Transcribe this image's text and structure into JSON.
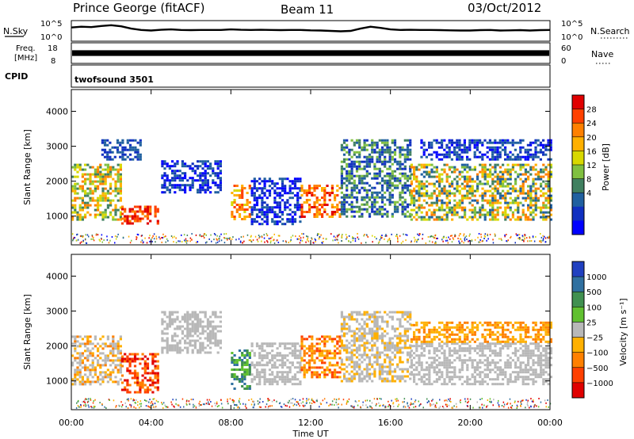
{
  "header": {
    "station": "Prince George (fitACF)",
    "beam": "Beam 11",
    "date": "03/Oct/2012"
  },
  "left_labels": {
    "nsky": "N.Sky",
    "freq_1": "Freq.",
    "freq_2": "[MHz]",
    "cpid": "CPID"
  },
  "right_labels": {
    "nsearch": "N.Search",
    "nave": "Nave"
  },
  "cpid_value": "twofsound 3501",
  "chart_data": [
    {
      "type": "line",
      "name": "noise-panel",
      "ylabel_left": "N.Sky",
      "ylabel_right": "N.Search",
      "left_ticks": [
        "10^5",
        "10^0"
      ],
      "right_ticks": [
        "10^5",
        "10^0"
      ],
      "xlim": [
        0,
        24
      ],
      "series": [
        {
          "x": [
            0,
            0.5,
            1,
            1.5,
            2,
            2.5,
            3,
            3.5,
            4,
            4.5,
            5,
            5.5,
            6,
            6.5,
            7,
            7.5,
            8,
            8.5,
            9,
            9.5,
            10,
            10.5,
            11,
            11.5,
            12,
            12.5,
            13,
            13.5,
            14,
            14.5,
            15,
            15.5,
            16,
            16.5,
            17,
            17.5,
            18,
            18.5,
            19,
            19.5,
            20,
            20.5,
            21,
            21.5,
            22,
            22.5,
            23,
            23.5,
            24
          ],
          "y": [
            0.68,
            0.72,
            0.7,
            0.76,
            0.8,
            0.74,
            0.62,
            0.55,
            0.52,
            0.56,
            0.58,
            0.55,
            0.54,
            0.55,
            0.55,
            0.55,
            0.58,
            0.56,
            0.55,
            0.56,
            0.55,
            0.54,
            0.55,
            0.55,
            0.53,
            0.52,
            0.5,
            0.48,
            0.5,
            0.62,
            0.72,
            0.66,
            0.58,
            0.55,
            0.56,
            0.55,
            0.55,
            0.54,
            0.53,
            0.52,
            0.52,
            0.54,
            0.55,
            0.52,
            0.53,
            0.54,
            0.52,
            0.54,
            0.55
          ]
        }
      ]
    },
    {
      "type": "bar",
      "name": "frequency-panel",
      "ylabel_left": "Freq. [MHz]",
      "ylabel_right": "Nave",
      "left_ticks": [
        "18",
        "8"
      ],
      "right_ticks": [
        "60",
        "0"
      ],
      "xlim": [
        0,
        24
      ],
      "band_value_range": [
        0.35,
        0.65
      ]
    },
    {
      "type": "heatmap",
      "name": "power-panel",
      "ylabel": "Slant Range [km]",
      "xlabel": "",
      "ylim": [
        200,
        4600
      ],
      "xlim": [
        0,
        24
      ],
      "y_ticks": [
        "1000",
        "2000",
        "3000",
        "4000"
      ],
      "colorbar": {
        "label": "Power [dB]",
        "ticks": [
          "28",
          "24",
          "20",
          "16",
          "12",
          "8",
          "4"
        ],
        "colors": [
          "#e00000",
          "#ff4000",
          "#ff8000",
          "#ffb000",
          "#d8d800",
          "#80c040",
          "#408060",
          "#2060a0",
          "#1030c0",
          "#0000ff"
        ]
      },
      "regions": [
        {
          "t0": 0.0,
          "t1": 2.5,
          "r0": 900,
          "r1": 2500,
          "c": [
            2,
            3,
            4,
            5,
            6
          ]
        },
        {
          "t0": 2.5,
          "t1": 4.3,
          "r0": 800,
          "r1": 1300,
          "c": [
            0,
            1,
            2
          ]
        },
        {
          "t0": 1.5,
          "t1": 3.5,
          "r0": 2600,
          "r1": 3200,
          "c": [
            7,
            8
          ]
        },
        {
          "t0": 4.5,
          "t1": 7.5,
          "r0": 1700,
          "r1": 2600,
          "c": [
            7,
            8,
            9
          ]
        },
        {
          "t0": 8.0,
          "t1": 9.0,
          "r0": 900,
          "r1": 1900,
          "c": [
            1,
            2,
            3,
            4
          ]
        },
        {
          "t0": 9.0,
          "t1": 11.5,
          "r0": 800,
          "r1": 2100,
          "c": [
            7,
            8,
            9
          ]
        },
        {
          "t0": 11.5,
          "t1": 13.5,
          "r0": 1000,
          "r1": 1900,
          "c": [
            0,
            1,
            2,
            3
          ]
        },
        {
          "t0": 13.5,
          "t1": 17.0,
          "r0": 1000,
          "r1": 3200,
          "c": [
            5,
            6,
            7,
            8
          ]
        },
        {
          "t0": 17.0,
          "t1": 24.0,
          "r0": 900,
          "r1": 2500,
          "c": [
            2,
            3,
            4,
            5,
            6,
            7
          ]
        },
        {
          "t0": 17.5,
          "t1": 24.0,
          "r0": 2600,
          "r1": 3200,
          "c": [
            7,
            8,
            9
          ]
        }
      ]
    },
    {
      "type": "heatmap",
      "name": "velocity-panel",
      "ylabel": "Slant Range [km]",
      "xlabel": "Time UT",
      "ylim": [
        200,
        4600
      ],
      "xlim": [
        0,
        24
      ],
      "x_ticks": [
        "00:00",
        "04:00",
        "08:00",
        "12:00",
        "16:00",
        "20:00",
        "00:00"
      ],
      "y_ticks": [
        "1000",
        "2000",
        "3000",
        "4000"
      ],
      "colorbar": {
        "label": "Velocity [m s⁻¹]",
        "ticks": [
          "1000",
          "500",
          "100",
          "25",
          "−25",
          "−100",
          "−500",
          "−1000"
        ],
        "colors": [
          "#2040c0",
          "#3070a0",
          "#409050",
          "#60c030",
          "#b8b8b8",
          "#ffb000",
          "#ff8000",
          "#ff4000",
          "#e00000"
        ]
      },
      "regions": [
        {
          "t0": 0.0,
          "t1": 2.5,
          "r0": 900,
          "r1": 2300,
          "c": [
            4,
            4,
            5,
            6
          ]
        },
        {
          "t0": 2.5,
          "t1": 4.3,
          "r0": 700,
          "r1": 1800,
          "c": [
            6,
            7,
            8
          ]
        },
        {
          "t0": 4.5,
          "t1": 7.5,
          "r0": 1800,
          "r1": 3000,
          "c": [
            4
          ]
        },
        {
          "t0": 8.0,
          "t1": 9.0,
          "r0": 800,
          "r1": 1900,
          "c": [
            1,
            2,
            3
          ]
        },
        {
          "t0": 9.0,
          "t1": 11.5,
          "r0": 900,
          "r1": 2100,
          "c": [
            4
          ]
        },
        {
          "t0": 11.5,
          "t1": 13.5,
          "r0": 1100,
          "r1": 2300,
          "c": [
            5,
            6,
            7
          ]
        },
        {
          "t0": 13.5,
          "t1": 17.0,
          "r0": 1000,
          "r1": 3000,
          "c": [
            4,
            4,
            5
          ]
        },
        {
          "t0": 17.0,
          "t1": 24.0,
          "r0": 900,
          "r1": 2100,
          "c": [
            4
          ]
        },
        {
          "t0": 17.0,
          "t1": 24.0,
          "r0": 2100,
          "r1": 2700,
          "c": [
            5,
            6
          ]
        }
      ]
    }
  ]
}
